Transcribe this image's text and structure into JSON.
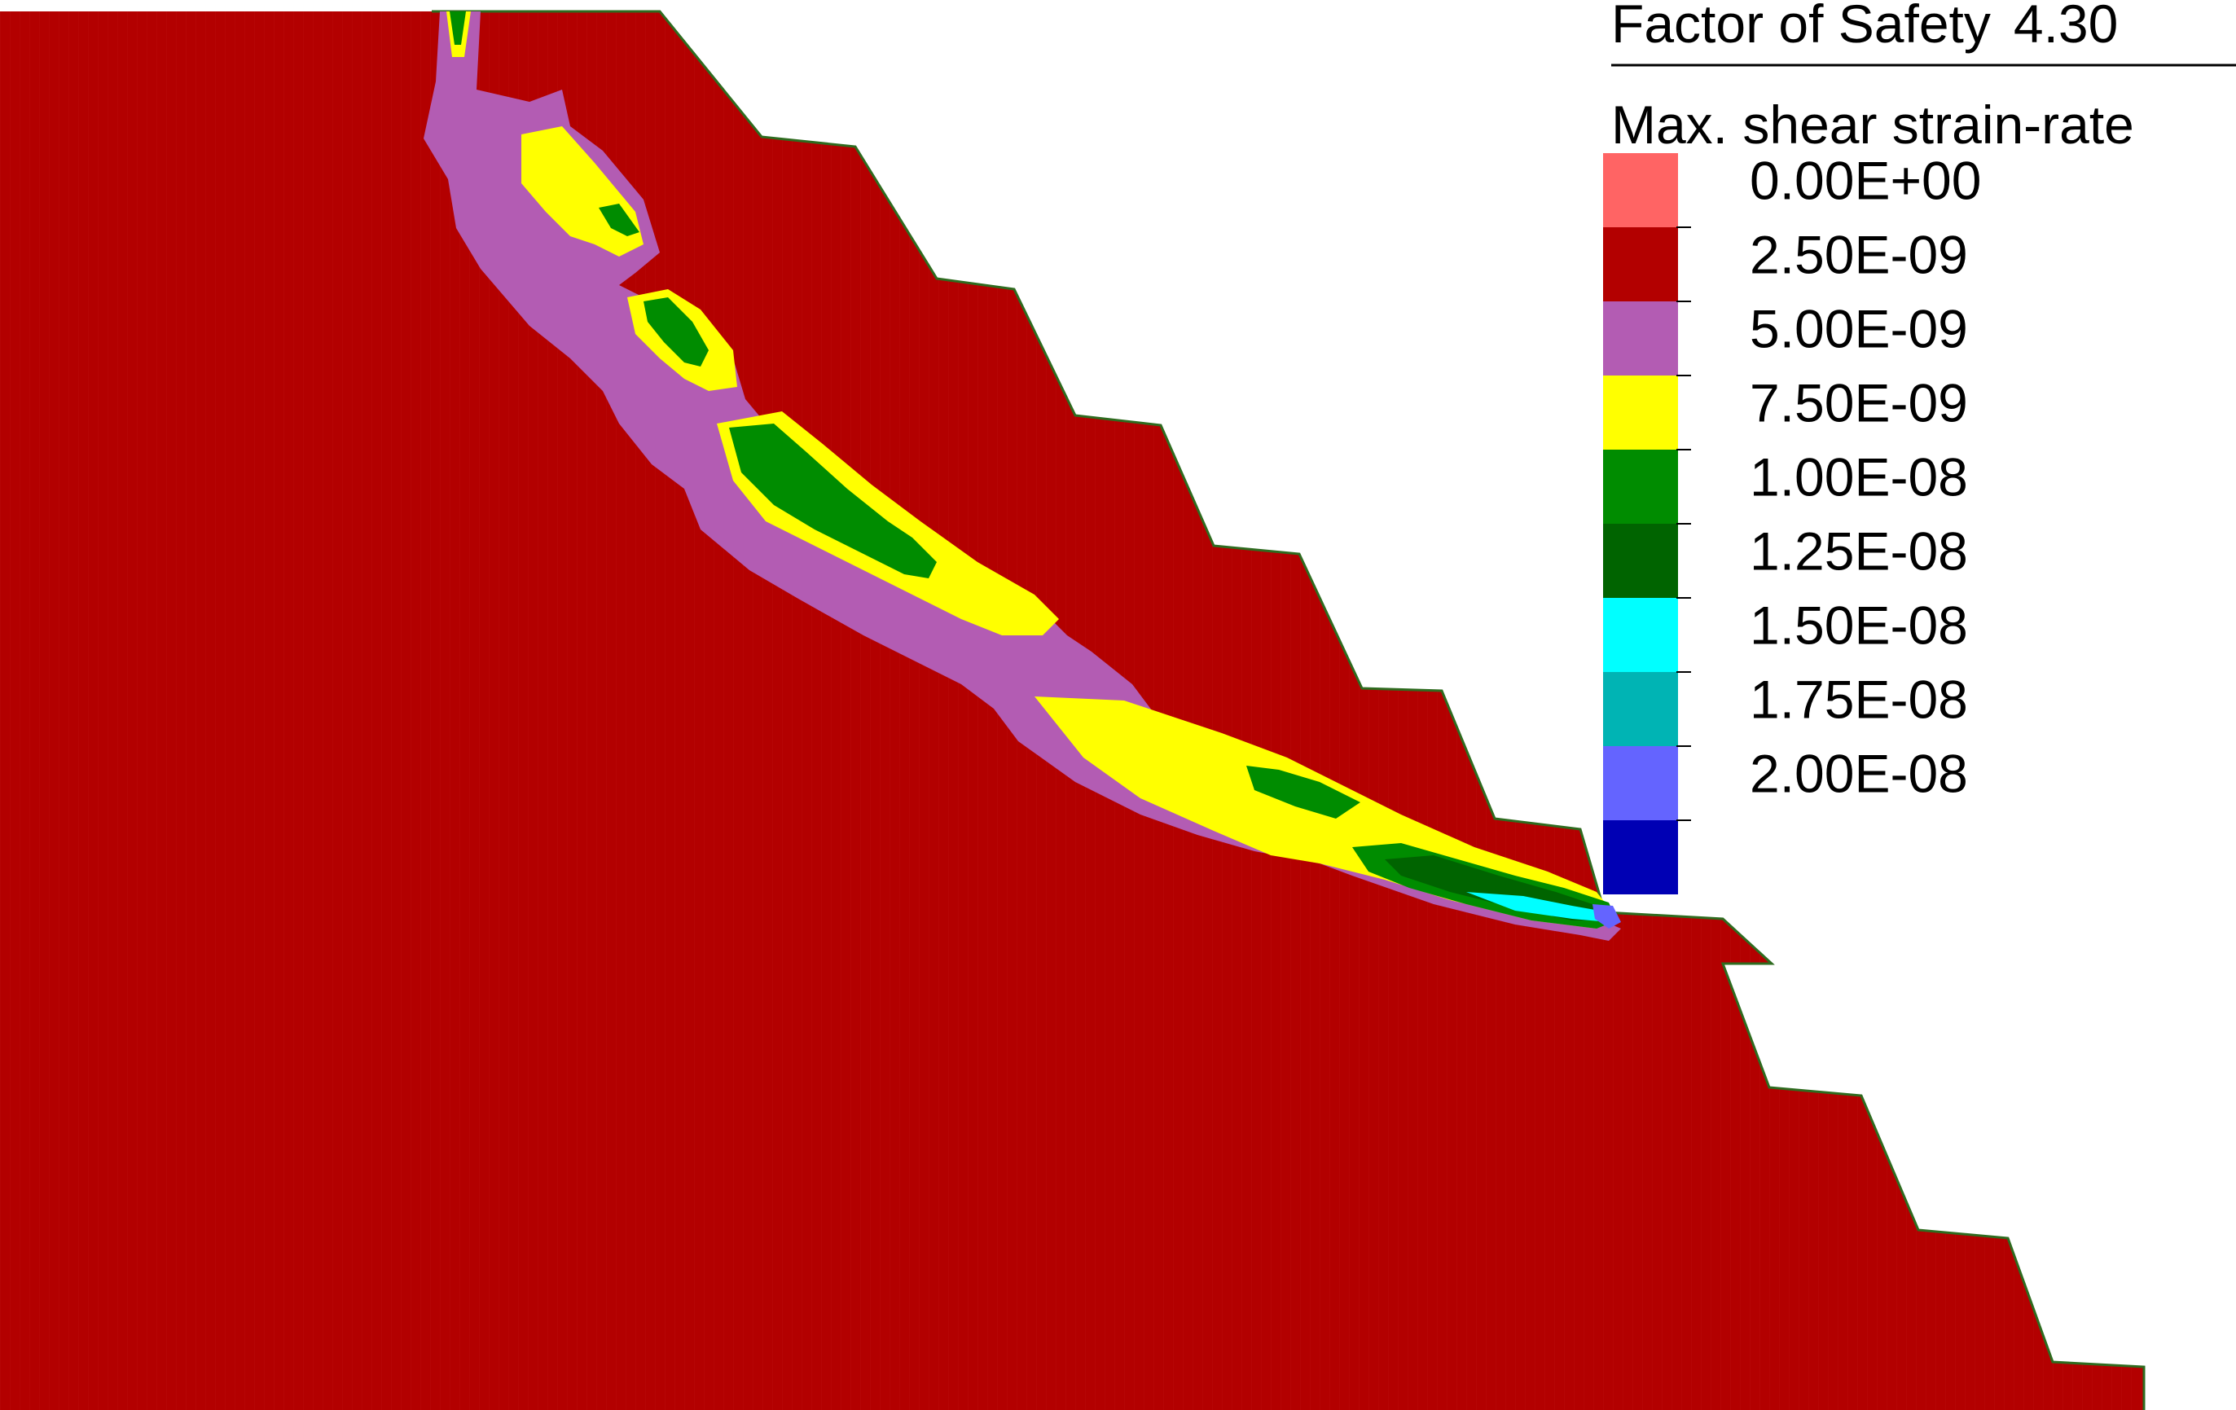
{
  "legend": {
    "fos_label": "Factor of Safety",
    "fos_value": "4.30",
    "quantity_label": "Max. shear strain-rate",
    "entries": [
      {
        "label": "0.00E+00",
        "color": "#ff6464"
      },
      {
        "label": "2.50E-09",
        "color": "#b30000"
      },
      {
        "label": "5.00E-09",
        "color": "#b35cb3"
      },
      {
        "label": "7.50E-09",
        "color": "#ffff00"
      },
      {
        "label": "1.00E-08",
        "color": "#008c00"
      },
      {
        "label": "1.25E-08",
        "color": "#006400"
      },
      {
        "label": "1.50E-08",
        "color": "#00ffff"
      },
      {
        "label": "1.75E-08",
        "color": "#00b4b4"
      },
      {
        "label": "2.00E-08",
        "color": "#6464ff"
      },
      {
        "label": "",
        "color": "#0000b4"
      }
    ]
  },
  "colors": {
    "slope_body": "#b30000",
    "band_outer": "#b35cb3",
    "band_mid": "#ffff00",
    "band_core": "#008c00",
    "band_deep": "#006400",
    "band_cyan": "#00ffff",
    "band_blue": "#6464ff",
    "surface_line": "#2e6b1f"
  }
}
